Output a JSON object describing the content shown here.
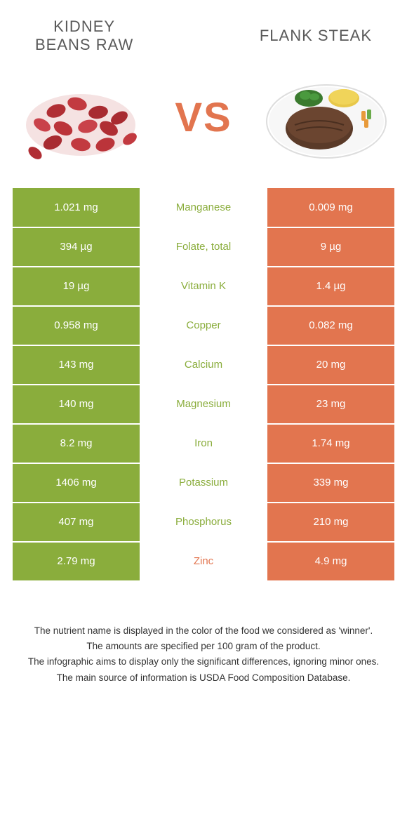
{
  "colors": {
    "left": "#8aad3c",
    "right": "#e2754f",
    "vs": "#e2754f",
    "title": "#5a5a5a",
    "nutrient_left_winner": "#8aad3c",
    "nutrient_right_winner": "#e2754f"
  },
  "header": {
    "left_title": "Kidney\nbeans raw",
    "right_title": "Flank steak",
    "vs": "VS"
  },
  "rows": [
    {
      "left": "1.021 mg",
      "nutrient": "Manganese",
      "right": "0.009 mg",
      "winner": "left"
    },
    {
      "left": "394 µg",
      "nutrient": "Folate, total",
      "right": "9 µg",
      "winner": "left"
    },
    {
      "left": "19 µg",
      "nutrient": "Vitamin K",
      "right": "1.4 µg",
      "winner": "left"
    },
    {
      "left": "0.958 mg",
      "nutrient": "Copper",
      "right": "0.082 mg",
      "winner": "left"
    },
    {
      "left": "143 mg",
      "nutrient": "Calcium",
      "right": "20 mg",
      "winner": "left"
    },
    {
      "left": "140 mg",
      "nutrient": "Magnesium",
      "right": "23 mg",
      "winner": "left"
    },
    {
      "left": "8.2 mg",
      "nutrient": "Iron",
      "right": "1.74 mg",
      "winner": "left"
    },
    {
      "left": "1406 mg",
      "nutrient": "Potassium",
      "right": "339 mg",
      "winner": "left"
    },
    {
      "left": "407 mg",
      "nutrient": "Phosphorus",
      "right": "210 mg",
      "winner": "left"
    },
    {
      "left": "2.79 mg",
      "nutrient": "Zinc",
      "right": "4.9 mg",
      "winner": "right"
    }
  ],
  "footer": {
    "line1": "The nutrient name is displayed in the color of the food we considered as 'winner'.",
    "line2": "The amounts are specified per 100 gram of the product.",
    "line3": "The infographic aims to display only the significant differences, ignoring minor ones.",
    "line4": "The main source of information is USDA Food Composition Database."
  }
}
